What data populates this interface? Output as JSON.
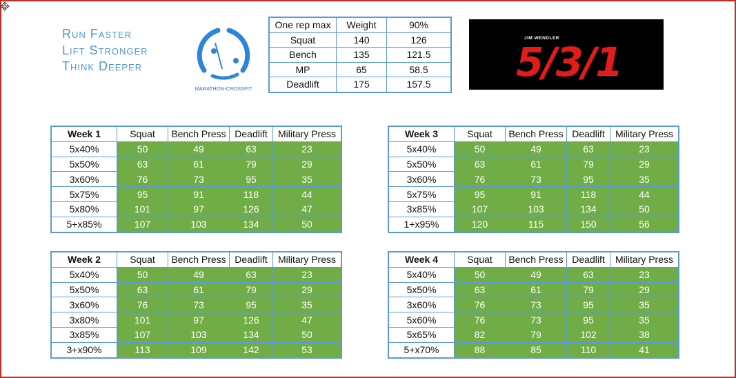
{
  "slogan": [
    "Run Faster",
    "Lift Stronger",
    "Think Deeper"
  ],
  "logo": {
    "text": "MARATHON-CROSSFIT"
  },
  "banner": {
    "small": "JIM WENDLER",
    "big": "5/3/1"
  },
  "one_rep_max": {
    "headers": [
      "One rep max",
      "Weight",
      "90%"
    ],
    "rows": [
      [
        "Squat",
        "140",
        "126"
      ],
      [
        "Bench",
        "135",
        "121.5"
      ],
      [
        "MP",
        "65",
        "58.5"
      ],
      [
        "Deadlift",
        "175",
        "157.5"
      ]
    ]
  },
  "weeks": [
    {
      "headers": [
        "Week 1",
        "Squat",
        "Bench Press",
        "Deadlift",
        "Military Press"
      ],
      "rows": [
        [
          "5x40%",
          "50",
          "49",
          "63",
          "23"
        ],
        [
          "5x50%",
          "63",
          "61",
          "79",
          "29"
        ],
        [
          "3x60%",
          "76",
          "73",
          "95",
          "35"
        ],
        [
          "5x75%",
          "95",
          "91",
          "118",
          "44"
        ],
        [
          "5x80%",
          "101",
          "97",
          "126",
          "47"
        ],
        [
          "5+x85%",
          "107",
          "103",
          "134",
          "50"
        ]
      ]
    },
    {
      "headers": [
        "Week 3",
        "Squat",
        "Bench Press",
        "Deadlift",
        "Military Press"
      ],
      "rows": [
        [
          "5x40%",
          "50",
          "49",
          "63",
          "23"
        ],
        [
          "5x50%",
          "63",
          "61",
          "79",
          "29"
        ],
        [
          "3x60%",
          "76",
          "73",
          "95",
          "35"
        ],
        [
          "5x75%",
          "95",
          "91",
          "118",
          "44"
        ],
        [
          "3x85%",
          "107",
          "103",
          "134",
          "50"
        ],
        [
          "1+x95%",
          "120",
          "115",
          "150",
          "56"
        ]
      ]
    },
    {
      "headers": [
        "Week 2",
        "Squat",
        "Bench Press",
        "Deadlift",
        "Military Press"
      ],
      "rows": [
        [
          "5x40%",
          "50",
          "49",
          "63",
          "23"
        ],
        [
          "5x50%",
          "63",
          "61",
          "79",
          "29"
        ],
        [
          "3x60%",
          "76",
          "73",
          "95",
          "35"
        ],
        [
          "3x80%",
          "101",
          "97",
          "126",
          "47"
        ],
        [
          "3x85%",
          "107",
          "103",
          "134",
          "50"
        ],
        [
          "3+x90%",
          "113",
          "109",
          "142",
          "53"
        ]
      ]
    },
    {
      "headers": [
        "Week 4",
        "Squat",
        "Bench Press",
        "Deadlift",
        "Military Press"
      ],
      "rows": [
        [
          "5x40%",
          "50",
          "49",
          "63",
          "23"
        ],
        [
          "5x50%",
          "63",
          "61",
          "79",
          "29"
        ],
        [
          "3x60%",
          "76",
          "73",
          "95",
          "35"
        ],
        [
          "5x60%",
          "76",
          "73",
          "95",
          "35"
        ],
        [
          "5x65%",
          "82",
          "79",
          "102",
          "38"
        ],
        [
          "5+x70%",
          "88",
          "85",
          "110",
          "41"
        ]
      ]
    }
  ],
  "colors": {
    "border": "#5b9bd5",
    "cell_green": "#70ad47",
    "slogan": "#4f97cf",
    "banner_red": "#e31b1b",
    "frame": "#c62828"
  },
  "icons": {
    "cursor": "move-cursor-icon",
    "logo": "runner-logo-icon"
  }
}
